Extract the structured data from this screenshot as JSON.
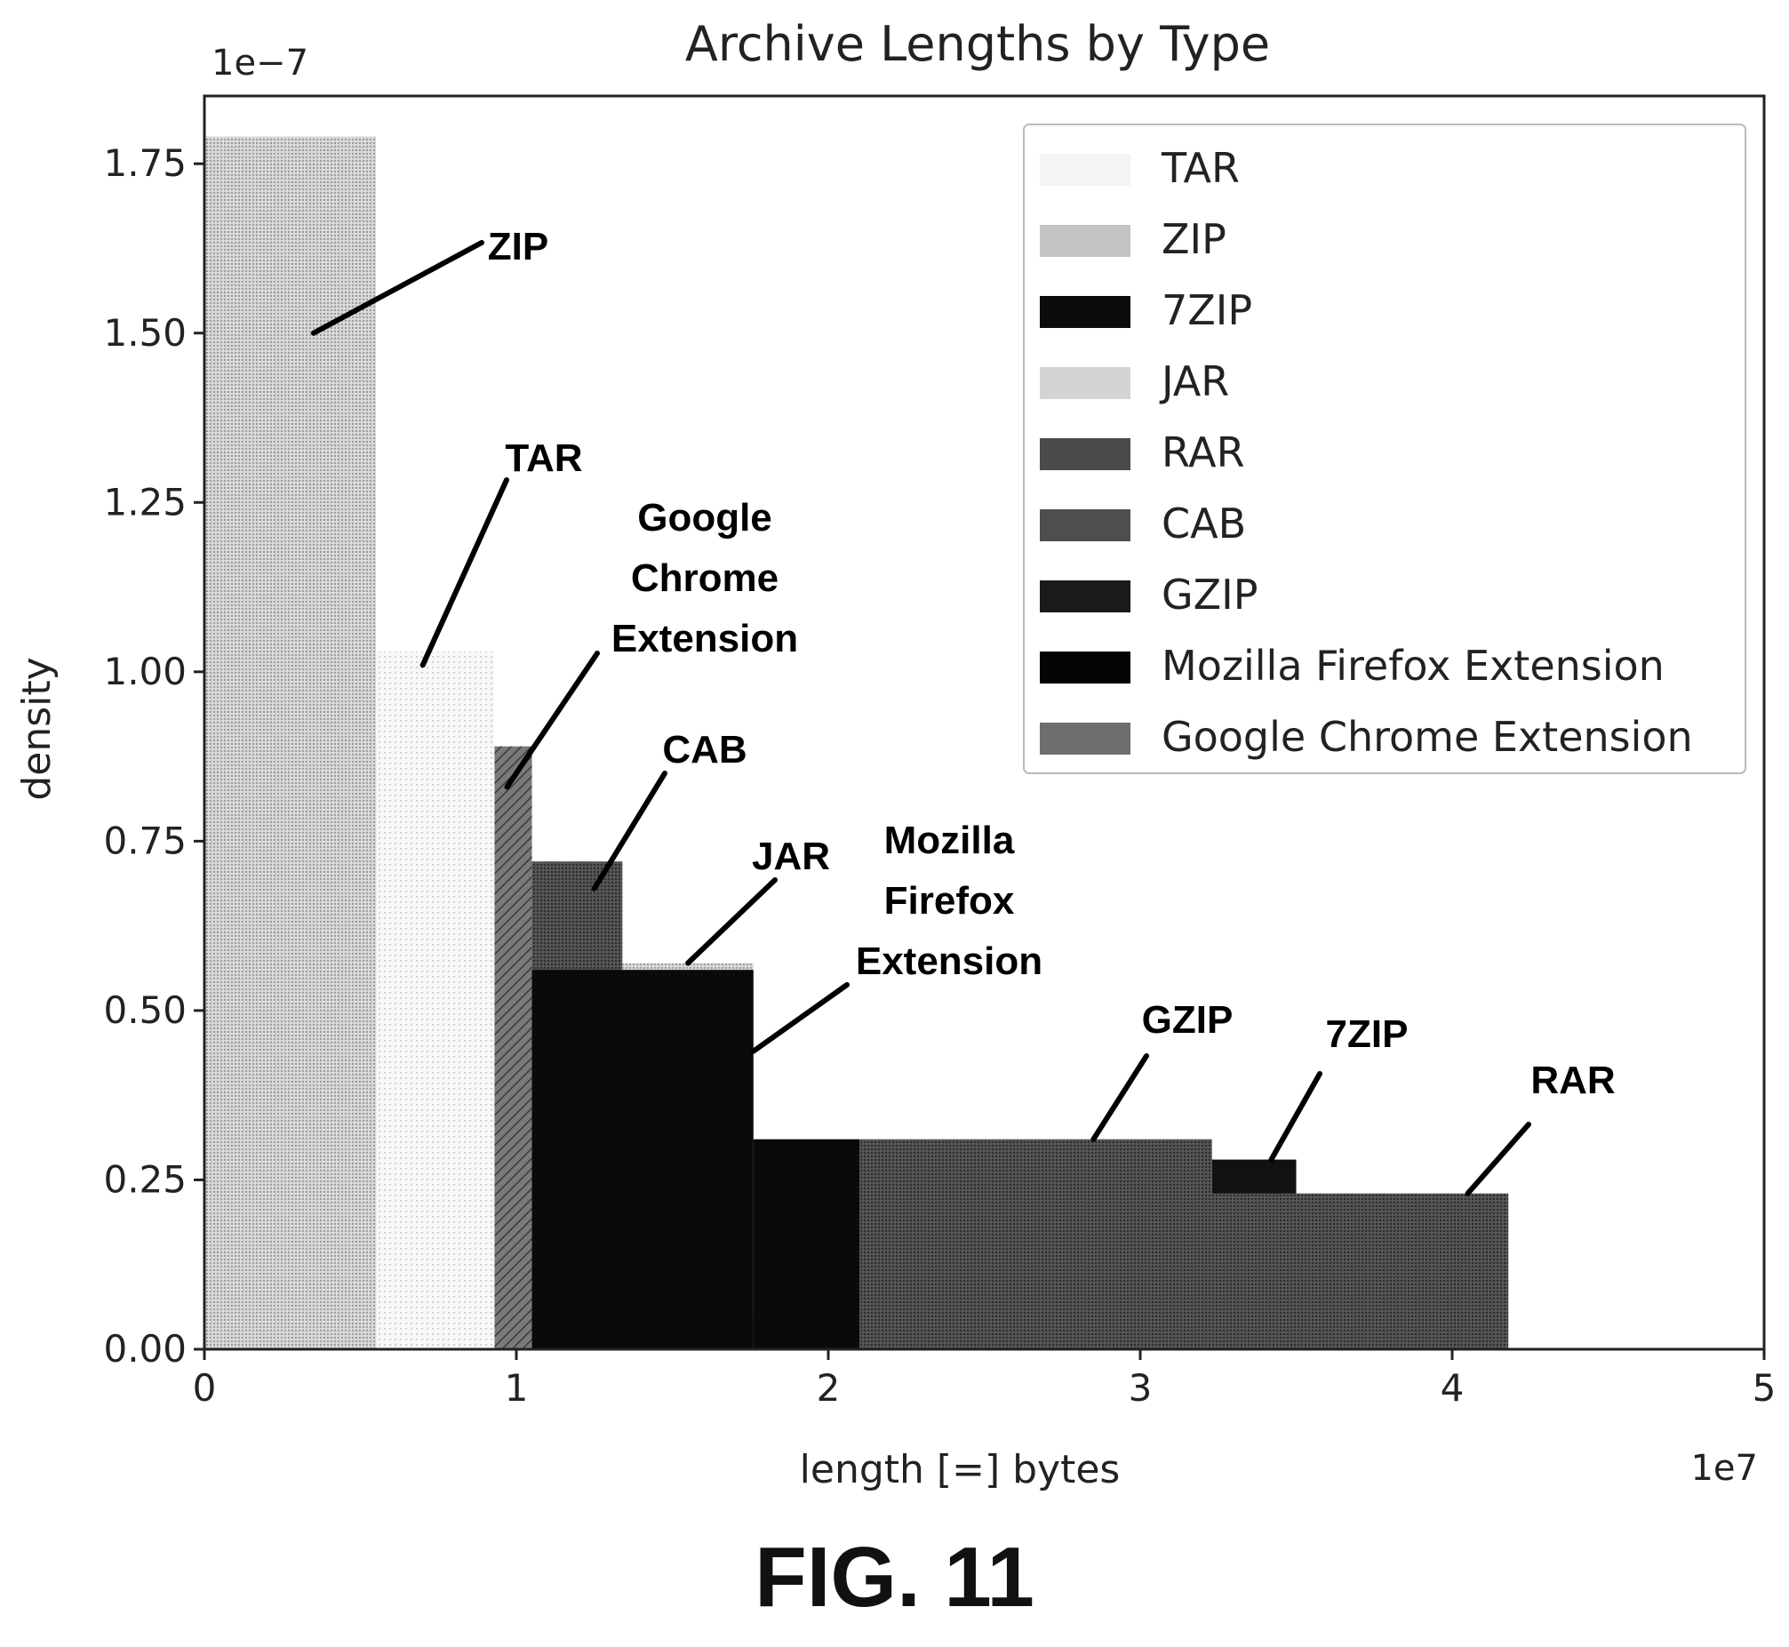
{
  "figure_label": "FIG. 11",
  "chart_data": {
    "type": "histogram",
    "title": "Archive Lengths by Type",
    "xlabel": "length [=] bytes",
    "ylabel": "density",
    "x_offset_text": "1e7",
    "y_offset_text": "1e−7",
    "xlim": [
      0,
      5
    ],
    "ylim": [
      0,
      1.85
    ],
    "x_ticks": [
      "0",
      "1",
      "2",
      "3",
      "4",
      "5"
    ],
    "y_ticks": [
      "0.00",
      "0.25",
      "0.50",
      "0.75",
      "1.00",
      "1.25",
      "1.50",
      "1.75"
    ],
    "grid": false,
    "legend_position": "top-right",
    "series": [
      {
        "name": "Google Chrome Extension",
        "color": "#6a6a6a",
        "pattern": "hatch",
        "bins": [
          [
            0,
            1.05,
            0.89
          ],
          [
            1.05,
            2.1,
            0.05
          ]
        ]
      },
      {
        "name": "CAB",
        "color": "#5a5a5a",
        "pattern": "dense",
        "bins": [
          [
            1.05,
            1.34,
            0.72
          ]
        ]
      },
      {
        "name": "JAR",
        "color": "#d4d4d4",
        "pattern": "light",
        "bins": [
          [
            1.34,
            1.76,
            0.57
          ]
        ]
      },
      {
        "name": "Mozilla Firefox Extension",
        "color": "#0a0a0a",
        "pattern": "solid",
        "bins": [
          [
            1.05,
            1.76,
            0.56
          ],
          [
            1.76,
            2.1,
            0.31
          ]
        ]
      },
      {
        "name": "GZIP",
        "color": "#1e1e1e",
        "pattern": "dense",
        "bins": [
          [
            2.1,
            3.23,
            0.31
          ]
        ]
      },
      {
        "name": "7ZIP",
        "color": "#111111",
        "pattern": "solid",
        "bins": [
          [
            3.23,
            3.5,
            0.28
          ]
        ]
      },
      {
        "name": "RAR",
        "color": "#474747",
        "pattern": "dense",
        "bins": [
          [
            3.23,
            4.18,
            0.23
          ]
        ]
      },
      {
        "name": "TAR",
        "color": "#ececec",
        "pattern": "faint",
        "bins": [
          [
            0.55,
            0.93,
            1.03
          ]
        ]
      },
      {
        "name": "ZIP",
        "color": "#bdbdbd",
        "pattern": "light",
        "bins": [
          [
            0,
            0.55,
            1.79
          ]
        ]
      }
    ],
    "legend": [
      {
        "label": "TAR",
        "swatch": "#f4f4f4"
      },
      {
        "label": "ZIP",
        "swatch": "#c4c4c4"
      },
      {
        "label": "7ZIP",
        "swatch": "#0c0c0c"
      },
      {
        "label": "JAR",
        "swatch": "#d4d4d4"
      },
      {
        "label": "RAR",
        "swatch": "#4a4a4a"
      },
      {
        "label": "CAB",
        "swatch": "#4e4e4e"
      },
      {
        "label": "GZIP",
        "swatch": "#1a1a1a"
      },
      {
        "label": "Mozilla Firefox Extension",
        "swatch": "#050505"
      },
      {
        "label": "Google Chrome Extension",
        "swatch": "#6e6e6e"
      }
    ],
    "annotations": [
      {
        "lines": [
          "ZIP"
        ],
        "target": [
          0.35,
          1.5
        ]
      },
      {
        "lines": [
          "TAR"
        ],
        "target": [
          0.7,
          1.01
        ]
      },
      {
        "lines": [
          "Google",
          "Chrome",
          "Extension"
        ],
        "target": [
          0.97,
          0.83
        ]
      },
      {
        "lines": [
          "CAB"
        ],
        "target": [
          1.25,
          0.68
        ]
      },
      {
        "lines": [
          "JAR"
        ],
        "target": [
          1.55,
          0.57
        ]
      },
      {
        "lines": [
          "Mozilla",
          "Firefox",
          "Extension"
        ],
        "target": [
          1.76,
          0.44
        ]
      },
      {
        "lines": [
          "GZIP"
        ],
        "target": [
          2.85,
          0.31
        ]
      },
      {
        "lines": [
          "7ZIP"
        ],
        "target": [
          3.42,
          0.28
        ]
      },
      {
        "lines": [
          "RAR"
        ],
        "target": [
          4.05,
          0.23
        ]
      }
    ]
  }
}
